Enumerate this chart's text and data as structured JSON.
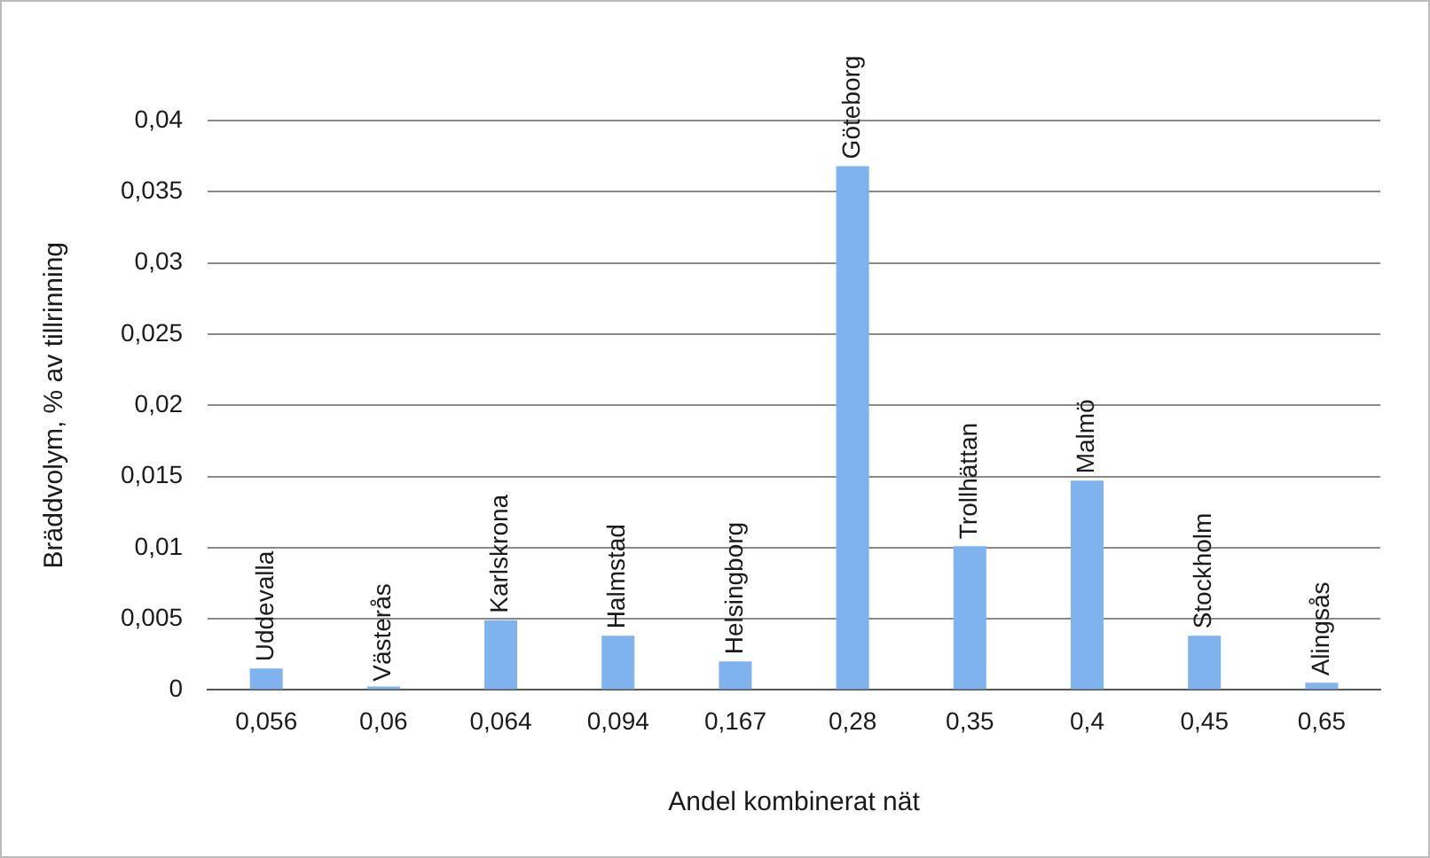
{
  "chart_data": {
    "type": "bar",
    "xlabel": "Andel kombinerat nät",
    "ylabel": "Bräddvolym, % av tillrinning",
    "categories": [
      "0,056",
      "0,06",
      "0,064",
      "0,094",
      "0,167",
      "0,28",
      "0,35",
      "0,4",
      "0,45",
      "0,65"
    ],
    "values": [
      0.0015,
      0.0001,
      0.0049,
      0.0038,
      0.002,
      0.0368,
      0.0101,
      0.0147,
      0.0038,
      0.0005
    ],
    "color": "#7fb3ef",
    "ylim": [
      0,
      0.04
    ],
    "yticks": [
      0,
      {
        "value": 0.005,
        "label": "0,005"
      },
      {
        "value": 0.01,
        "label": "0,01"
      },
      {
        "value": 0.015,
        "label": "0,015"
      },
      {
        "value": 0.02,
        "label": "0,02"
      },
      {
        "value": 0.025,
        "label": "0,025"
      },
      {
        "value": 0.03,
        "label": "0,03"
      },
      {
        "value": 0.035,
        "label": "0,035"
      },
      {
        "value": 0.04,
        "label": "0,04"
      }
    ],
    "grid": "y",
    "annotations": [
      {
        "text": "Uddevalla",
        "x": "0,056",
        "y": 0.0015
      },
      {
        "text": "Västerås",
        "x": "0,06",
        "y": 0.0001
      },
      {
        "text": "Karlskrona",
        "x": "0,064",
        "y": 0.0049
      },
      {
        "text": "Halmstad",
        "x": "0,094",
        "y": 0.0038
      },
      {
        "text": "Helsingborg",
        "x": "0,167",
        "y": 0.002
      },
      {
        "text": "Göteborg",
        "x": "0,28",
        "y": 0.0368
      },
      {
        "text": "Trollhättan",
        "x": "0,35",
        "y": 0.0101
      },
      {
        "text": "Malmö",
        "x": "0,4",
        "y": 0.0147
      },
      {
        "text": "Stockholm",
        "x": "0,45",
        "y": 0.0038
      },
      {
        "text": "Alingsås",
        "x": "0,65",
        "y": 0.0005
      }
    ]
  }
}
